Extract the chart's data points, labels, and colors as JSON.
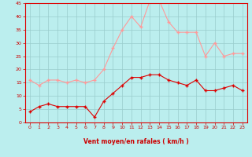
{
  "x": [
    0,
    1,
    2,
    3,
    4,
    5,
    6,
    7,
    8,
    9,
    10,
    11,
    12,
    13,
    14,
    15,
    16,
    17,
    18,
    19,
    20,
    21,
    22,
    23
  ],
  "wind_mean": [
    4,
    6,
    7,
    6,
    6,
    6,
    6,
    2,
    8,
    11,
    14,
    17,
    17,
    18,
    18,
    16,
    15,
    14,
    16,
    12,
    12,
    13,
    14,
    12
  ],
  "wind_gust": [
    16,
    14,
    16,
    16,
    15,
    16,
    15,
    16,
    20,
    28,
    35,
    40,
    36,
    46,
    46,
    38,
    34,
    34,
    34,
    25,
    30,
    25,
    26,
    26
  ],
  "mean_color": "#dd0000",
  "gust_color": "#ff9999",
  "bg_color": "#bbeeee",
  "grid_color": "#99cccc",
  "xlabel": "Vent moyen/en rafales ( km/h )",
  "xlabel_color": "#cc0000",
  "tick_color": "#cc0000",
  "ylim": [
    0,
    45
  ],
  "yticks": [
    0,
    5,
    10,
    15,
    20,
    25,
    30,
    35,
    40,
    45
  ],
  "xlim": [
    -0.5,
    23.5
  ],
  "xticks": [
    0,
    1,
    2,
    3,
    4,
    5,
    6,
    7,
    8,
    9,
    10,
    11,
    12,
    13,
    14,
    15,
    16,
    17,
    18,
    19,
    20,
    21,
    22,
    23
  ],
  "marker": "+",
  "linewidth": 0.8,
  "markersize": 3.5,
  "markeredgewidth": 1.0
}
